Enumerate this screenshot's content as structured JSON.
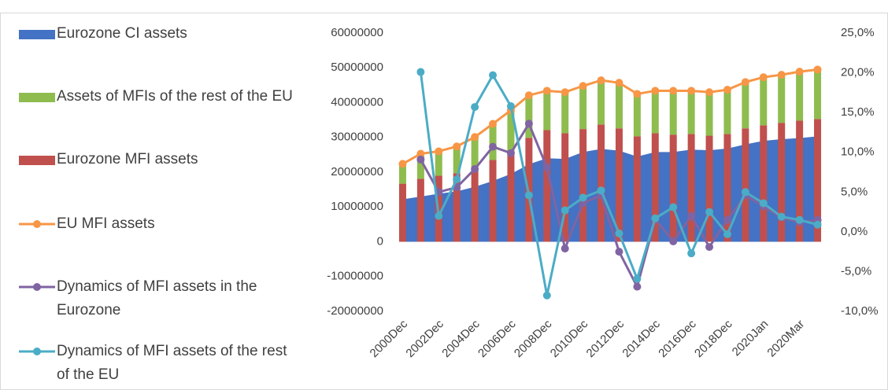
{
  "chart_data": {
    "type": "combo",
    "categories": [
      "2000Dec",
      null,
      "2002Dec",
      null,
      "2004Dec",
      null,
      "2006Dec",
      null,
      "2008Dec",
      null,
      "2010Dec",
      null,
      "2012Dec",
      null,
      "2014Dec",
      null,
      "2016Dec",
      null,
      "2018Dec",
      null,
      "2020Jan",
      null,
      "2020Mar",
      null
    ],
    "series": [
      {
        "name": "Eurozone CI assets",
        "type": "area",
        "color": "#4472c4",
        "values": [
          12200000,
          13000000,
          13800000,
          14500000,
          15800000,
          17500000,
          19500000,
          22300000,
          24000000,
          23800000,
          25800000,
          26700000,
          26200000,
          24500000,
          25800000,
          25800000,
          26500000,
          26300000,
          26800000,
          28000000,
          29000000,
          29500000,
          29800000,
          30300000
        ]
      },
      {
        "name": "Assets of MFIs of the rest of the EU",
        "type": "bar",
        "color": "#8fbc4f",
        "values": [
          5700000,
          7200000,
          7000000,
          7700000,
          9100000,
          10400000,
          12000000,
          12200000,
          11300000,
          11800000,
          12400000,
          12700000,
          13100000,
          12200000,
          12200000,
          12600000,
          12400000,
          12500000,
          12700000,
          13300000,
          13800000,
          13800000,
          14100000,
          14200000
        ]
      },
      {
        "name": "Eurozone MFI assets",
        "type": "bar",
        "color": "#c0504d",
        "values": [
          16700000,
          18100000,
          19000000,
          19700000,
          21000000,
          23500000,
          25800000,
          29900000,
          32100000,
          31200000,
          32400000,
          33700000,
          32600000,
          30300000,
          31200000,
          30800000,
          31000000,
          30500000,
          31000000,
          32600000,
          33500000,
          34200000,
          34800000,
          35300000
        ]
      },
      {
        "name": "EU MFI assets",
        "type": "line",
        "color": "#f79646",
        "values": [
          22400000,
          25300000,
          26000000,
          27400000,
          30100000,
          33900000,
          37800000,
          42100000,
          43400000,
          43000000,
          44800000,
          46400000,
          45700000,
          42500000,
          43400000,
          43400000,
          43400000,
          43000000,
          43700000,
          45900000,
          47300000,
          48000000,
          48900000,
          49500000
        ]
      },
      {
        "name": "Dynamics of MFI assets in the Eurozone",
        "type": "line",
        "color": "#8064a2",
        "axis": "y2",
        "values": [
          null,
          9.1,
          5.0,
          5.6,
          7.9,
          10.7,
          9.9,
          13.6,
          8.1,
          -2.1,
          3.6,
          4.6,
          -2.5,
          -6.9,
          1.6,
          -1.2,
          2.0,
          -1.9,
          1.5,
          4.6,
          3.2,
          1.8,
          1.2,
          1.5
        ]
      },
      {
        "name": "Dynamics of MFI assets of the rest of the EU",
        "type": "line",
        "color": "#4bacc6",
        "axis": "y2",
        "values": [
          null,
          20.1,
          2.0,
          6.6,
          15.7,
          19.7,
          15.8,
          4.6,
          -8.0,
          2.7,
          4.3,
          5.2,
          -0.2,
          -5.9,
          1.7,
          3.1,
          -2.7,
          2.5,
          -0.3,
          5.0,
          3.6,
          1.9,
          1.5,
          0.9
        ]
      }
    ],
    "ylim": [
      -20000000,
      60000000
    ],
    "yticks": [
      -20000000,
      -10000000,
      0,
      10000000,
      20000000,
      30000000,
      40000000,
      50000000,
      60000000
    ],
    "y2lim": [
      -10,
      25
    ],
    "y2ticks": [
      {
        "value": -10,
        "label": "-10,0%"
      },
      {
        "value": -5,
        "label": "-5,0%"
      },
      {
        "value": 0,
        "label": "0,0%"
      },
      {
        "value": 5,
        "label": "5,0%"
      },
      {
        "value": 10,
        "label": "10,0%"
      },
      {
        "value": 15,
        "label": "15,0%"
      },
      {
        "value": 20,
        "label": "20,0%"
      },
      {
        "value": 25,
        "label": "25,0%"
      }
    ],
    "legend": "left",
    "grid": false
  }
}
